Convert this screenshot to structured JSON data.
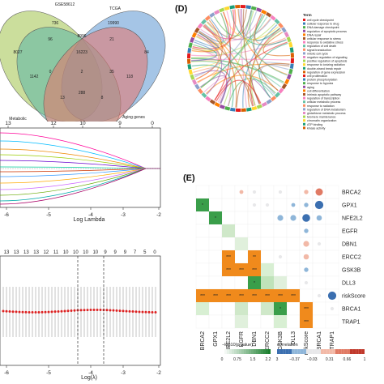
{
  "panel_labels": {
    "d": "(D)",
    "e": "(E)"
  },
  "venn": {
    "set_names": [
      "GSE58612",
      "TCGA",
      "Metabolic",
      "Aging genes"
    ],
    "counts": [
      "736",
      "19990",
      "96",
      "8996",
      "21",
      "16223",
      "8027",
      "84",
      "0",
      "2",
      "35",
      "1142",
      "288",
      "118",
      "13",
      "8"
    ],
    "colors": [
      "#a0c24a",
      "#5b95d1",
      "#5ab4a8",
      "#e8736a"
    ]
  },
  "lasso": {
    "top_ticks": [
      "13",
      "12",
      "10",
      "9",
      "0"
    ],
    "x_ticks": [
      "-6",
      "-5",
      "-4",
      "-3",
      "-2"
    ],
    "xlabel": "Log Lambda"
  },
  "cv": {
    "top_ticks": [
      "13",
      "13",
      "13",
      "13",
      "12",
      "11",
      "10",
      "10",
      "10",
      "10",
      "9",
      "9",
      "9",
      "7",
      "5",
      "0"
    ],
    "x_ticks": [
      "-6",
      "-5",
      "-4",
      "-3",
      "-2"
    ],
    "xlabel": "Log(λ)"
  },
  "chord": {
    "legend_title": "Term",
    "legend_items": [
      "cell cycle checkpoint",
      "cellular response to drug",
      "DNA damage checkpoint",
      "regulation of apoptotic process",
      "DNA repair",
      "cellular response to stress",
      "response to oxidative stress",
      "regulation of cell death",
      "signal transduction",
      "mitotic cell cycle",
      "negative regulation of signaling",
      "positive regulation of apoptosis",
      "response to ionizing radiation",
      "double-strand break repair",
      "regulation of gene expression",
      "cell proliferation",
      "protein phosphorylation",
      "response to hypoxia",
      "aging",
      "cell differentiation",
      "intrinsic apoptotic pathway",
      "regulation of transcription",
      "cellular metabolic process",
      "response to radiation",
      "regulation of DNA metabolism",
      "glutathione metabolic process",
      "telomere maintenance",
      "chromatin organization",
      "ATP binding",
      "kinase activity"
    ]
  },
  "corr_matrix": {
    "row_labels": [
      "BRCA2",
      "GPX1",
      "NFE2L2",
      "EGFR",
      "DBN1",
      "ERCC2",
      "GSK3B",
      "DLL3",
      "riskScore",
      "BRCA1",
      "TRAP1"
    ],
    "col_labels": [
      "BRCA2",
      "GPX1",
      "NFE2L2",
      "EGFR",
      "DBN1",
      "ERCC2",
      "GSK3B",
      "DLL3",
      "riskScore",
      "BRCA1",
      "TRAP1"
    ],
    "lower_cells": [
      {
        "r": 1,
        "c": 0,
        "color": "#3a9e4a",
        "stars": "*"
      },
      {
        "r": 2,
        "c": 1,
        "color": "#3a9e4a",
        "stars": "*"
      },
      {
        "r": 3,
        "c": 2,
        "color": "#cfe8c9",
        "stars": ""
      },
      {
        "r": 4,
        "c": 3,
        "color": "#e0f0dc",
        "stars": ""
      },
      {
        "r": 5,
        "c": 2,
        "color": "#f08a1c",
        "stars": "***"
      },
      {
        "r": 5,
        "c": 4,
        "color": "#f08a1c",
        "stars": "**"
      },
      {
        "r": 6,
        "c": 2,
        "color": "#f08a1c",
        "stars": "***"
      },
      {
        "r": 6,
        "c": 3,
        "color": "#f08a1c",
        "stars": "***"
      },
      {
        "r": 6,
        "c": 4,
        "color": "#f08a1c",
        "stars": "***"
      },
      {
        "r": 6,
        "c": 5,
        "color": "#d8efd3",
        "stars": ""
      },
      {
        "r": 7,
        "c": 4,
        "color": "#3a9e4a",
        "stars": "*"
      },
      {
        "r": 7,
        "c": 5,
        "color": "#bfe3b9",
        "stars": ""
      },
      {
        "r": 7,
        "c": 6,
        "color": "#e0f0dc",
        "stars": ""
      },
      {
        "r": 8,
        "c": 0,
        "color": "#f08a1c",
        "stars": "***"
      },
      {
        "r": 8,
        "c": 1,
        "color": "#f08a1c",
        "stars": "***"
      },
      {
        "r": 8,
        "c": 2,
        "color": "#f08a1c",
        "stars": "***"
      },
      {
        "r": 8,
        "c": 3,
        "color": "#f08a1c",
        "stars": "***"
      },
      {
        "r": 8,
        "c": 4,
        "color": "#f08a1c",
        "stars": "***"
      },
      {
        "r": 8,
        "c": 5,
        "color": "#f08a1c",
        "stars": "***"
      },
      {
        "r": 8,
        "c": 6,
        "color": "#f08a1c",
        "stars": "***"
      },
      {
        "r": 8,
        "c": 7,
        "color": "#f08a1c",
        "stars": "***"
      },
      {
        "r": 9,
        "c": 0,
        "color": "#d8efd3",
        "stars": ""
      },
      {
        "r": 9,
        "c": 3,
        "color": "#cfe8c9",
        "stars": ""
      },
      {
        "r": 9,
        "c": 5,
        "color": "#cfe8c9",
        "stars": ""
      },
      {
        "r": 9,
        "c": 6,
        "color": "#3a9e4a",
        "stars": "*"
      },
      {
        "r": 9,
        "c": 8,
        "color": "#f08a1c",
        "stars": "***"
      },
      {
        "r": 10,
        "c": 3,
        "color": "#e0f0dc",
        "stars": ""
      },
      {
        "r": 10,
        "c": 6,
        "color": "#d8efd3",
        "stars": ""
      },
      {
        "r": 10,
        "c": 8,
        "color": "#f08a1c",
        "stars": "***"
      }
    ],
    "upper_circles": [
      {
        "r": 0,
        "c": 3,
        "v": 0.15
      },
      {
        "r": 0,
        "c": 4,
        "v": 0.1
      },
      {
        "r": 0,
        "c": 6,
        "v": -0.1
      },
      {
        "r": 0,
        "c": 8,
        "v": 0.2
      },
      {
        "r": 0,
        "c": 9,
        "v": 0.5
      },
      {
        "r": 1,
        "c": 4,
        "v": 0.1
      },
      {
        "r": 1,
        "c": 5,
        "v": 0.1
      },
      {
        "r": 1,
        "c": 7,
        "v": -0.15
      },
      {
        "r": 1,
        "c": 8,
        "v": -0.2
      },
      {
        "r": 1,
        "c": 9,
        "v": -0.6
      },
      {
        "r": 2,
        "c": 6,
        "v": -0.35
      },
      {
        "r": 2,
        "c": 7,
        "v": -0.35
      },
      {
        "r": 2,
        "c": 8,
        "v": -0.55
      },
      {
        "r": 2,
        "c": 9,
        "v": -0.3
      },
      {
        "r": 3,
        "c": 8,
        "v": -0.2
      },
      {
        "r": 4,
        "c": 8,
        "v": 0.35
      },
      {
        "r": 4,
        "c": 9,
        "v": 0.1
      },
      {
        "r": 5,
        "c": 6,
        "v": 0.1
      },
      {
        "r": 5,
        "c": 8,
        "v": 0.3
      },
      {
        "r": 6,
        "c": 8,
        "v": -0.2
      },
      {
        "r": 7,
        "c": 8,
        "v": 0.1
      },
      {
        "r": 8,
        "c": 9,
        "v": 0.1
      },
      {
        "r": 8,
        "c": 10,
        "v": -0.6
      },
      {
        "r": 9,
        "c": 10,
        "v": 0.1
      }
    ],
    "legend_p_title": "−log10(p value)",
    "legend_p_ticks": [
      "0",
      "0.75",
      "1.5",
      "2.2"
    ],
    "legend_corr_title": "correlation",
    "legend_corr_ticks": [
      "3",
      "−0.37",
      "−0.03",
      "0.31",
      "0.66",
      "1"
    ]
  }
}
